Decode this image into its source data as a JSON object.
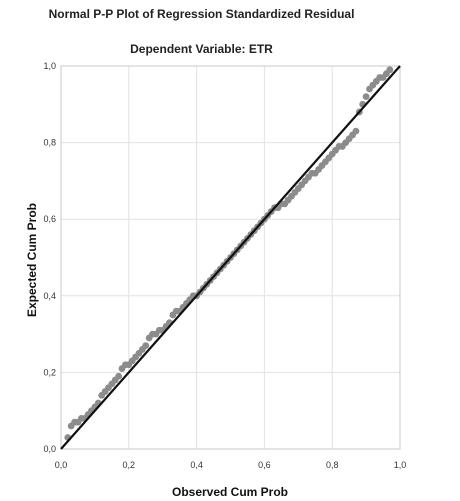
{
  "chart_data": {
    "type": "scatter",
    "title": "Normal P-P Plot of Regression Standardized Residual",
    "subtitle": "Dependent Variable: ETR",
    "xlabel": "Observed Cum Prob",
    "ylabel": "Expected Cum Prob",
    "xlim": [
      0,
      1
    ],
    "ylim": [
      0,
      1
    ],
    "x_ticks": [
      "0,0",
      "0,2",
      "0,4",
      "0,6",
      "0,8",
      "1,0"
    ],
    "y_ticks": [
      "0,0",
      "0,2",
      "0,4",
      "0,6",
      "0,8",
      "1,0"
    ],
    "grid": true,
    "reference_line": {
      "x": [
        0,
        1
      ],
      "y": [
        0,
        1
      ]
    },
    "points": {
      "x": [
        0.02,
        0.03,
        0.04,
        0.05,
        0.06,
        0.07,
        0.08,
        0.09,
        0.1,
        0.11,
        0.12,
        0.13,
        0.14,
        0.15,
        0.16,
        0.17,
        0.18,
        0.19,
        0.2,
        0.21,
        0.22,
        0.23,
        0.24,
        0.25,
        0.26,
        0.27,
        0.28,
        0.29,
        0.3,
        0.31,
        0.32,
        0.33,
        0.34,
        0.35,
        0.36,
        0.37,
        0.38,
        0.39,
        0.4,
        0.41,
        0.42,
        0.43,
        0.44,
        0.45,
        0.46,
        0.47,
        0.48,
        0.49,
        0.5,
        0.51,
        0.52,
        0.53,
        0.54,
        0.55,
        0.56,
        0.57,
        0.58,
        0.59,
        0.6,
        0.61,
        0.62,
        0.63,
        0.64,
        0.65,
        0.66,
        0.67,
        0.68,
        0.69,
        0.7,
        0.71,
        0.72,
        0.73,
        0.74,
        0.75,
        0.76,
        0.77,
        0.78,
        0.79,
        0.8,
        0.81,
        0.82,
        0.83,
        0.84,
        0.85,
        0.86,
        0.87,
        0.88,
        0.89,
        0.9,
        0.91,
        0.92,
        0.93,
        0.94,
        0.95,
        0.96,
        0.97
      ],
      "y": [
        0.03,
        0.06,
        0.07,
        0.07,
        0.08,
        0.08,
        0.09,
        0.1,
        0.11,
        0.12,
        0.14,
        0.15,
        0.16,
        0.17,
        0.18,
        0.19,
        0.21,
        0.22,
        0.22,
        0.23,
        0.24,
        0.25,
        0.26,
        0.27,
        0.29,
        0.3,
        0.3,
        0.31,
        0.31,
        0.32,
        0.33,
        0.35,
        0.36,
        0.36,
        0.37,
        0.38,
        0.39,
        0.4,
        0.4,
        0.41,
        0.42,
        0.43,
        0.44,
        0.45,
        0.46,
        0.47,
        0.48,
        0.49,
        0.5,
        0.51,
        0.52,
        0.53,
        0.54,
        0.55,
        0.56,
        0.57,
        0.58,
        0.59,
        0.6,
        0.61,
        0.62,
        0.63,
        0.63,
        0.64,
        0.64,
        0.65,
        0.66,
        0.67,
        0.68,
        0.69,
        0.7,
        0.71,
        0.72,
        0.72,
        0.73,
        0.74,
        0.75,
        0.76,
        0.77,
        0.78,
        0.79,
        0.79,
        0.8,
        0.81,
        0.82,
        0.83,
        0.88,
        0.9,
        0.92,
        0.94,
        0.95,
        0.96,
        0.97,
        0.97,
        0.98,
        0.99
      ]
    }
  },
  "colors": {
    "points": "#8c8c8c",
    "reference_line": "#111111",
    "grid": "#e2e2e2",
    "frame": "#c9c9c9"
  }
}
